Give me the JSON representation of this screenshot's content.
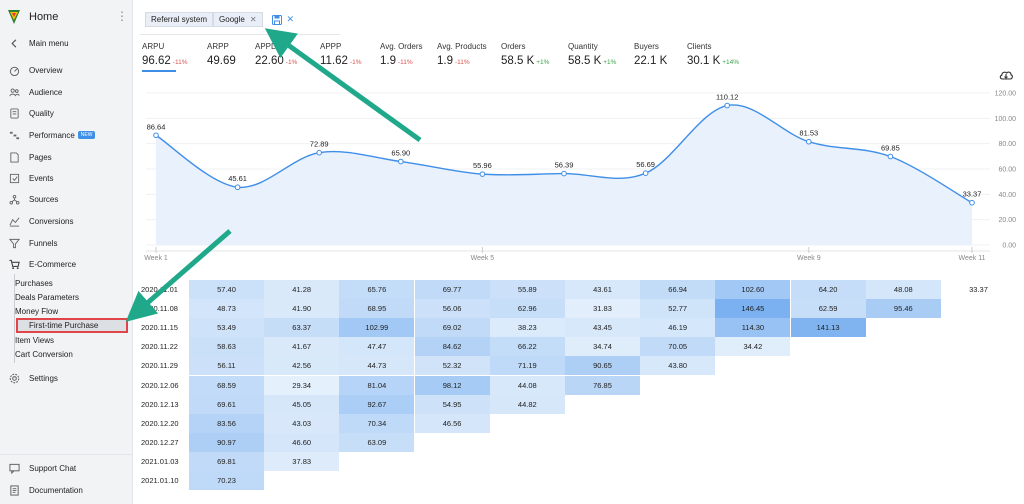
{
  "sidebar": {
    "home": "Home",
    "main_menu": "Main menu",
    "items": [
      {
        "label": "Overview",
        "icon": "gauge-icon"
      },
      {
        "label": "Audience",
        "icon": "people-icon"
      },
      {
        "label": "Quality",
        "icon": "quality-icon"
      },
      {
        "label": "Performance",
        "icon": "performance-icon",
        "badge": "NEW"
      },
      {
        "label": "Pages",
        "icon": "page-icon"
      },
      {
        "label": "Events",
        "icon": "events-icon"
      },
      {
        "label": "Sources",
        "icon": "sources-icon"
      },
      {
        "label": "Conversions",
        "icon": "conversions-icon"
      },
      {
        "label": "Funnels",
        "icon": "funnel-icon"
      },
      {
        "label": "E-Commerce",
        "icon": "cart-icon"
      }
    ],
    "ecommerce_sub": [
      "Purchases",
      "Deals Parameters",
      "Money Flow",
      "First-time Purchase",
      "Item Views",
      "Cart Conversion"
    ],
    "settings": "Settings",
    "support_chat": "Support Chat",
    "documentation": "Documentation"
  },
  "filters": {
    "chips": [
      "Referral system",
      "Google"
    ]
  },
  "metrics": [
    {
      "label": "ARPU",
      "value": "96.62",
      "change": "-11%",
      "dir": "neg"
    },
    {
      "label": "ARPP",
      "value": "49.69",
      "change": "",
      "dir": ""
    },
    {
      "label": "APPD",
      "value": "22.60",
      "change": "-1%",
      "dir": "neg"
    },
    {
      "label": "APPP",
      "value": "11.62",
      "change": "-1%",
      "dir": "neg"
    },
    {
      "label": "Avg. Orders",
      "value": "1.9",
      "change": "-11%",
      "dir": "neg"
    },
    {
      "label": "Avg. Products",
      "value": "1.9",
      "change": "-11%",
      "dir": "neg"
    },
    {
      "label": "Orders",
      "value": "58.5 K",
      "change": "+1%",
      "dir": "pos"
    },
    {
      "label": "Quantity",
      "value": "58.5 K",
      "change": "+1%",
      "dir": "pos"
    },
    {
      "label": "Buyers",
      "value": "22.1 K",
      "change": "",
      "dir": ""
    },
    {
      "label": "Clients",
      "value": "30.1 K",
      "change": "+14%",
      "dir": "pos"
    }
  ],
  "chart_data": {
    "type": "area",
    "x": [
      "2020.11.01",
      "2020.11.08",
      "2020.11.15",
      "2020.11.22",
      "2020.11.29",
      "2020.12.06",
      "2020.12.13",
      "2020.12.20",
      "2020.12.27",
      "2021.01.03",
      "2021.01.10"
    ],
    "x_tick_labels": [
      "Week 1",
      "Week 5",
      "Week 9",
      "Week 11"
    ],
    "series": [
      {
        "values": [
          86.64,
          45.61,
          72.89,
          65.9,
          55.96,
          56.39,
          56.69,
          110.12,
          81.53,
          69.85,
          33.37
        ]
      }
    ],
    "value_labels": [
      "86.64",
      "45.61",
      "72.89",
      "65.90",
      "55.96",
      "56.39",
      "56.69",
      "110.12",
      "81.53",
      "69.85",
      "33.37"
    ],
    "y_ticks": [
      "0.00",
      "20.00",
      "40.00",
      "60.00",
      "80.00",
      "100.00",
      "120.00"
    ],
    "ylim": [
      0,
      120
    ],
    "grid": true,
    "axis_position": "right",
    "color": "#3f8ee8"
  },
  "cohort_table": {
    "rows": [
      {
        "date": "2020.11.01",
        "values": [
          "57.40",
          "41.28",
          "65.76",
          "69.77",
          "55.89",
          "43.61",
          "66.94",
          "102.60",
          "64.20",
          "48.08",
          "33.37"
        ]
      },
      {
        "date": "2020.11.08",
        "values": [
          "48.73",
          "41.90",
          "68.95",
          "56.06",
          "62.96",
          "31.83",
          "52.77",
          "146.45",
          "62.59",
          "95.46"
        ]
      },
      {
        "date": "2020.11.15",
        "values": [
          "53.49",
          "63.37",
          "102.99",
          "69.02",
          "38.23",
          "43.45",
          "46.19",
          "114.30",
          "141.13"
        ]
      },
      {
        "date": "2020.11.22",
        "values": [
          "58.63",
          "41.67",
          "47.47",
          "84.62",
          "66.22",
          "34.74",
          "70.05",
          "34.42"
        ]
      },
      {
        "date": "2020.11.29",
        "values": [
          "56.11",
          "42.56",
          "44.73",
          "52.32",
          "71.19",
          "90.65",
          "43.80"
        ]
      },
      {
        "date": "2020.12.06",
        "values": [
          "68.59",
          "29.34",
          "81.04",
          "98.12",
          "44.08",
          "76.85"
        ]
      },
      {
        "date": "2020.12.13",
        "values": [
          "69.61",
          "45.05",
          "92.67",
          "54.95",
          "44.82"
        ]
      },
      {
        "date": "2020.12.20",
        "values": [
          "83.56",
          "43.03",
          "70.34",
          "46.56"
        ]
      },
      {
        "date": "2020.12.27",
        "values": [
          "90.97",
          "46.60",
          "63.09"
        ]
      },
      {
        "date": "2021.01.03",
        "values": [
          "69.81",
          "37.83"
        ]
      },
      {
        "date": "2021.01.10",
        "values": [
          "70.23"
        ]
      }
    ]
  },
  "colors": {
    "accent": "#3f8ee8",
    "arrow": "#1fa88a",
    "highlight_border": "#e0454a",
    "negative": "#d9534f",
    "positive": "#3aa34a"
  }
}
